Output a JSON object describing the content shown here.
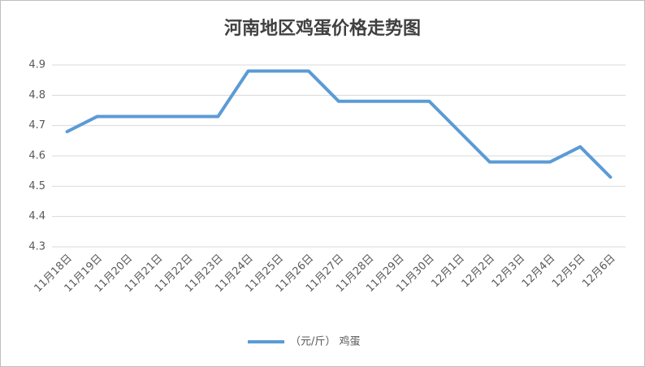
{
  "chart_data": {
    "type": "line",
    "title": "河南地区鸡蛋价格走势图",
    "categories": [
      "11月18日",
      "11月19日",
      "11月20日",
      "11月21日",
      "11月22日",
      "11月23日",
      "11月24日",
      "11月25日",
      "11月26日",
      "11月27日",
      "11月28日",
      "11月29日",
      "11月30日",
      "12月1日",
      "12月2日",
      "12月3日",
      "12月4日",
      "12月5日",
      "12月6日"
    ],
    "series": [
      {
        "name": "（元/斤） 鸡蛋",
        "color": "#5b9bd5",
        "values": [
          4.68,
          4.73,
          4.73,
          4.73,
          4.73,
          4.73,
          4.88,
          4.88,
          4.88,
          4.78,
          4.78,
          4.78,
          4.78,
          4.68,
          4.58,
          4.58,
          4.58,
          4.63,
          4.53
        ]
      }
    ],
    "ylim": [
      4.3,
      4.9
    ],
    "yticks": [
      4.3,
      4.4,
      4.5,
      4.6,
      4.7,
      4.8,
      4.9
    ],
    "grid": true,
    "legend": "bottom"
  }
}
